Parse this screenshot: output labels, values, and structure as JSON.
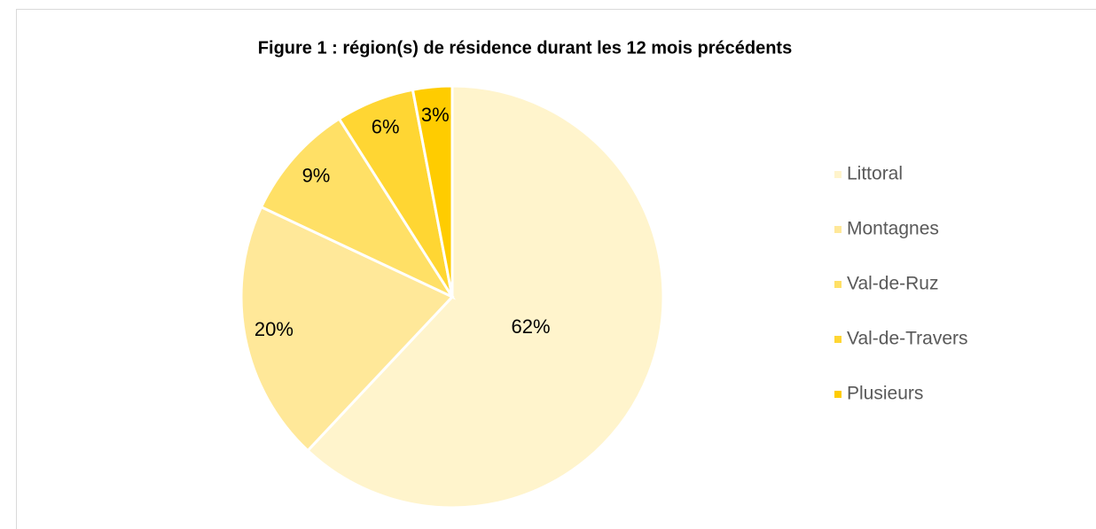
{
  "chart_data": {
    "type": "pie",
    "title": "Figure 1 : région(s) de résidence durant les 12 mois précédents",
    "categories": [
      "Littoral",
      "Montagnes",
      "Val-de-Ruz",
      "Val-de-Travers",
      "Plusieurs"
    ],
    "values": [
      62,
      20,
      9,
      6,
      3
    ],
    "value_labels": [
      "62%",
      "20%",
      "9%",
      "6%",
      "3%"
    ],
    "colors": [
      "#FFF4CC",
      "#FFE899",
      "#FFE066",
      "#FFD633",
      "#FFCC00"
    ],
    "legend": "right"
  }
}
